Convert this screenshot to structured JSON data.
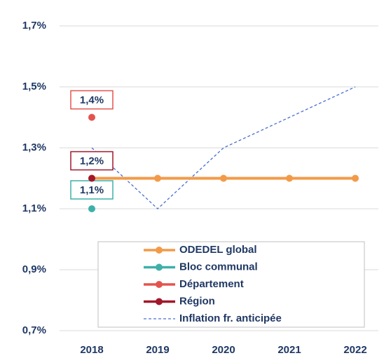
{
  "chart_data": {
    "type": "line",
    "categories": [
      "2018",
      "2019",
      "2020",
      "2021",
      "2022"
    ],
    "series": [
      {
        "name": "ODEDEL  global",
        "color": "#f39a48",
        "values": [
          1.2,
          1.2,
          1.2,
          1.2,
          1.2
        ],
        "marker": true,
        "dashed": false
      },
      {
        "name": "Bloc communal",
        "color": "#3eb0a9",
        "values": [
          1.1,
          null,
          null,
          null,
          null
        ],
        "value_labels": [
          "1,1%",
          null,
          null,
          null,
          null
        ],
        "marker": true,
        "dashed": false
      },
      {
        "name": "Département",
        "color": "#e5534f",
        "values": [
          1.4,
          null,
          null,
          null,
          null
        ],
        "value_labels": [
          "1,4%",
          null,
          null,
          null,
          null
        ],
        "marker": true,
        "dashed": false
      },
      {
        "name": "Région",
        "color": "#a3172a",
        "values": [
          1.2,
          null,
          null,
          null,
          null
        ],
        "value_labels": [
          "1,2%",
          null,
          null,
          null,
          null
        ],
        "marker": true,
        "dashed": false
      },
      {
        "name": "Inflation fr. anticipée",
        "color": "#4a6fd0",
        "values": [
          1.3,
          1.1,
          1.3,
          1.4,
          1.5
        ],
        "marker": false,
        "dashed": true
      }
    ],
    "ylim": [
      0.7,
      1.7
    ],
    "yticks": [
      {
        "value": 0.7,
        "label": "0,7%"
      },
      {
        "value": 0.9,
        "label": "0,9%"
      },
      {
        "value": 1.1,
        "label": "1,1%"
      },
      {
        "value": 1.3,
        "label": "1,3%"
      },
      {
        "value": 1.5,
        "label": "1,5%"
      },
      {
        "value": 1.7,
        "label": "1,7%"
      }
    ],
    "grid": true,
    "legend": "lower center"
  }
}
